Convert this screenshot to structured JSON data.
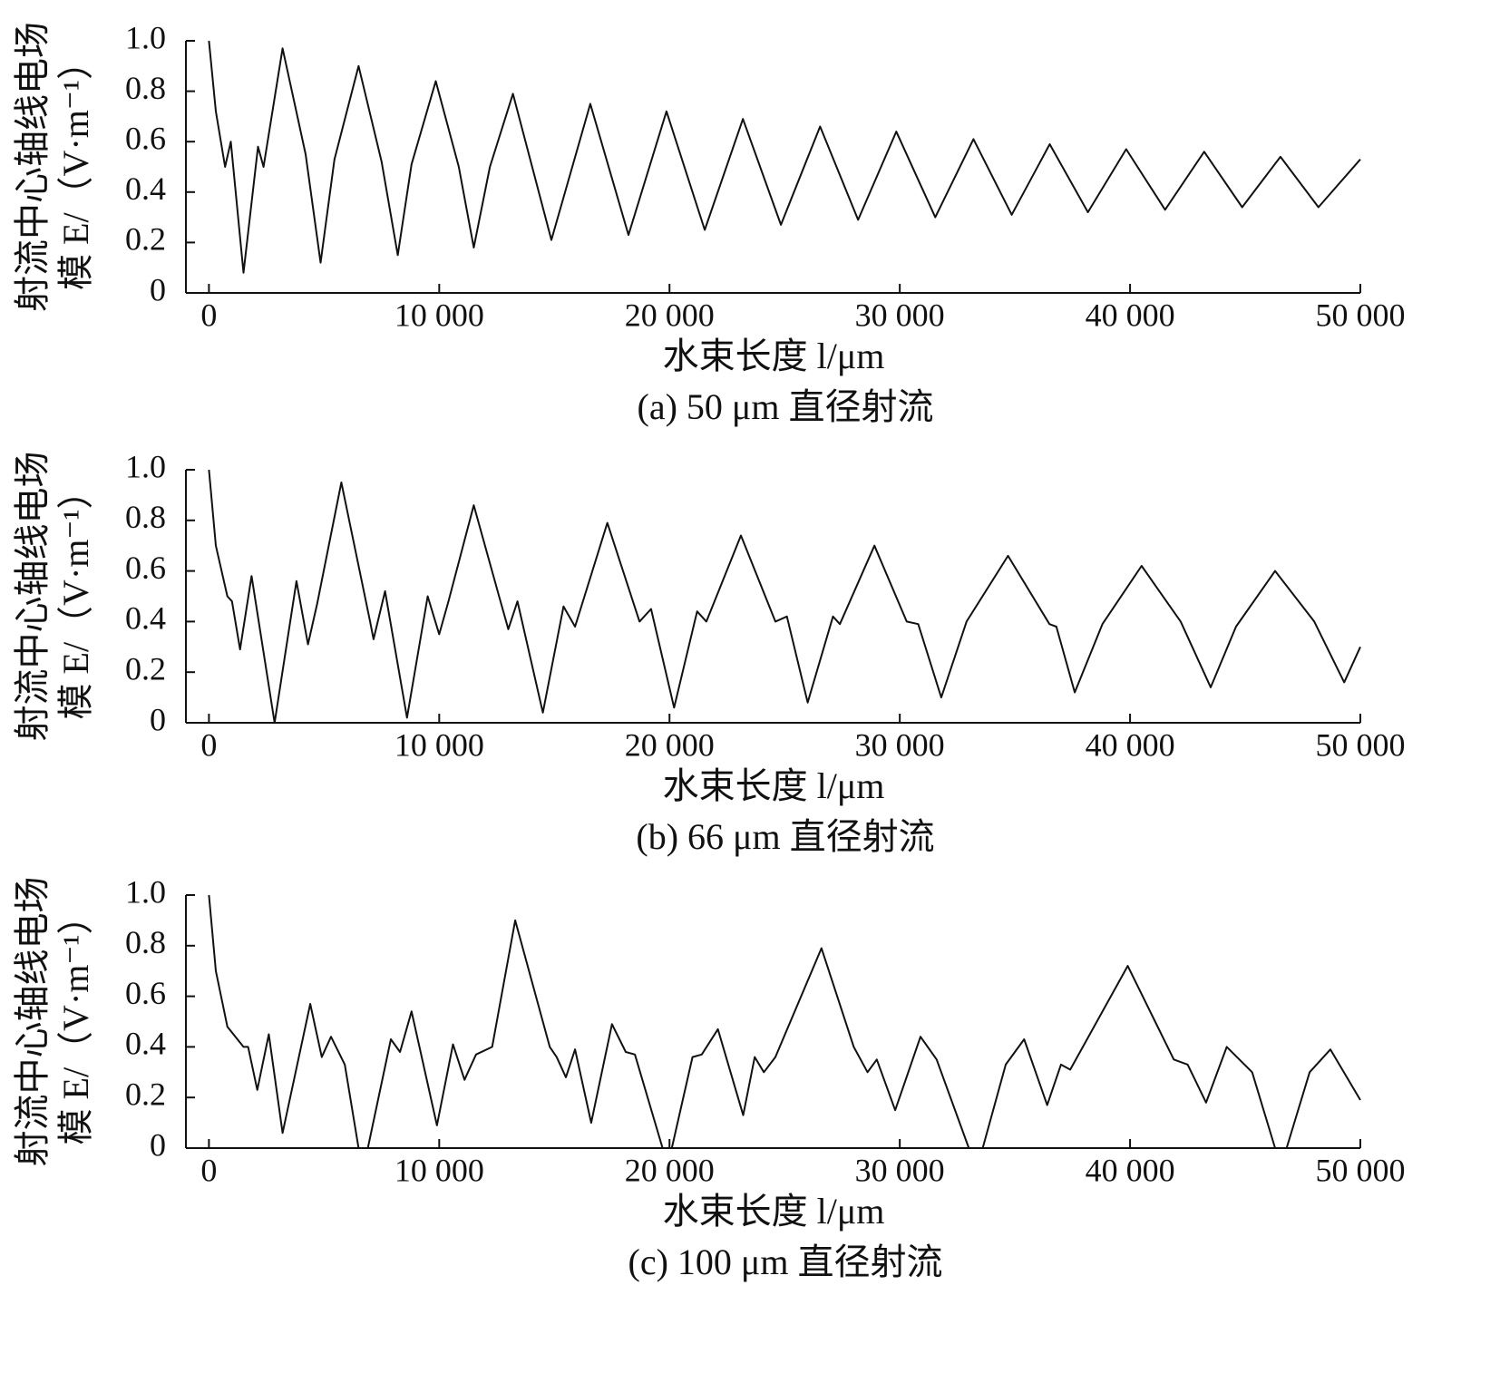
{
  "chart_data": [
    {
      "type": "line",
      "caption": "(a)  50 μm 直径射流",
      "xlabel": "水束长度 l/μm",
      "ylabel": [
        "射流中心轴线电场",
        "模 E/（V·m⁻¹）"
      ],
      "color": "#111111",
      "xlim": [
        -1000,
        50000
      ],
      "ylim": [
        0,
        1
      ],
      "xticks": [
        0,
        {
          "value": 10000,
          "label": "10 000"
        },
        {
          "value": 20000,
          "label": "20 000"
        },
        {
          "value": 30000,
          "label": "30 000"
        },
        {
          "value": 40000,
          "label": "40 000"
        },
        {
          "value": 50000,
          "label": "50 000"
        }
      ],
      "yticks": [
        0,
        0.2,
        0.4,
        0.6,
        0.8,
        {
          "value": 1,
          "label": "1.0"
        }
      ],
      "x": [
        0,
        300,
        700,
        950,
        1500,
        2130,
        2370,
        3200,
        4200,
        4850,
        5450,
        6500,
        7500,
        8200,
        8800,
        9850,
        10850,
        11500,
        12200,
        13200,
        14870,
        16560,
        18220,
        19870,
        21530,
        23190,
        24840,
        26540,
        28190,
        29850,
        31540,
        33200,
        34860,
        36510,
        38170,
        39830,
        41520,
        43220,
        44870,
        46530,
        48180,
        50000
      ],
      "values": [
        1.0,
        0.72,
        0.5,
        0.6,
        0.08,
        0.58,
        0.5,
        0.97,
        0.55,
        0.12,
        0.53,
        0.9,
        0.52,
        0.15,
        0.51,
        0.84,
        0.5,
        0.18,
        0.5,
        0.79,
        0.21,
        0.75,
        0.23,
        0.72,
        0.25,
        0.69,
        0.27,
        0.66,
        0.29,
        0.64,
        0.3,
        0.61,
        0.31,
        0.59,
        0.32,
        0.57,
        0.33,
        0.56,
        0.34,
        0.54,
        0.34,
        0.53
      ]
    },
    {
      "type": "line",
      "caption": "(b)  66 μm 直径射流",
      "xlabel": "水束长度 l/μm",
      "ylabel": [
        "射流中心轴线电场",
        "模 E/（V·m⁻¹）"
      ],
      "color": "#111111",
      "xlim": [
        -1000,
        50000
      ],
      "ylim": [
        0,
        1
      ],
      "xticks": [
        0,
        {
          "value": 10000,
          "label": "10 000"
        },
        {
          "value": 20000,
          "label": "20 000"
        },
        {
          "value": 30000,
          "label": "30 000"
        },
        {
          "value": 40000,
          "label": "40 000"
        },
        {
          "value": 50000,
          "label": "50 000"
        }
      ],
      "yticks": [
        0,
        0.2,
        0.4,
        0.6,
        0.8,
        {
          "value": 1,
          "label": "1.0"
        }
      ],
      "x": [
        0,
        300,
        800,
        1000,
        1350,
        1850,
        2850,
        3800,
        4300,
        4700,
        5750,
        7000,
        7150,
        7650,
        8600,
        9500,
        10000,
        10400,
        11500,
        12600,
        13000,
        13400,
        14500,
        15400,
        15900,
        17300,
        18700,
        19200,
        20200,
        21200,
        21600,
        23100,
        24600,
        25100,
        26000,
        27100,
        27400,
        28900,
        30300,
        30800,
        31800,
        32900,
        34700,
        36500,
        36800,
        37600,
        38800,
        40500,
        42200,
        43500,
        44600,
        46300,
        48000,
        49300,
        50000
      ],
      "values": [
        1.0,
        0.7,
        0.5,
        0.48,
        0.29,
        0.58,
        0.0,
        0.56,
        0.31,
        0.47,
        0.95,
        0.4,
        0.33,
        0.52,
        0.02,
        0.5,
        0.35,
        0.48,
        0.86,
        0.5,
        0.37,
        0.48,
        0.04,
        0.46,
        0.38,
        0.79,
        0.4,
        0.45,
        0.06,
        0.44,
        0.4,
        0.74,
        0.4,
        0.42,
        0.08,
        0.42,
        0.39,
        0.7,
        0.4,
        0.39,
        0.1,
        0.4,
        0.66,
        0.39,
        0.38,
        0.12,
        0.39,
        0.62,
        0.4,
        0.14,
        0.38,
        0.6,
        0.4,
        0.16,
        0.3
      ]
    },
    {
      "type": "line",
      "caption": "(c)  100 μm 直径射流",
      "xlabel": "水束长度 l/μm",
      "ylabel": [
        "射流中心轴线电场",
        "模 E/（V·m⁻¹）"
      ],
      "color": "#111111",
      "xlim": [
        -1000,
        50000
      ],
      "ylim": [
        0,
        1
      ],
      "xticks": [
        0,
        {
          "value": 10000,
          "label": "10 000"
        },
        {
          "value": 20000,
          "label": "20 000"
        },
        {
          "value": 30000,
          "label": "30 000"
        },
        {
          "value": 40000,
          "label": "40 000"
        },
        {
          "value": 50000,
          "label": "50 000"
        }
      ],
      "yticks": [
        0,
        0.2,
        0.4,
        0.6,
        0.8,
        {
          "value": 1,
          "label": "1.0"
        }
      ],
      "x": [
        0,
        300,
        800,
        1500,
        1700,
        2100,
        2600,
        3200,
        4400,
        4900,
        5300,
        5900,
        6500,
        6900,
        7900,
        8300,
        8800,
        9900,
        10600,
        11100,
        11600,
        12300,
        13300,
        14800,
        15100,
        15500,
        15900,
        16600,
        17500,
        18100,
        18500,
        19700,
        20100,
        21000,
        21400,
        22100,
        23200,
        23700,
        24100,
        24600,
        26600,
        28000,
        28600,
        29000,
        29800,
        30900,
        31600,
        33000,
        33600,
        34600,
        35400,
        36400,
        37000,
        37400,
        39900,
        41900,
        42500,
        43300,
        44200,
        45300,
        46300,
        46800,
        47800,
        48700,
        50000
      ],
      "values": [
        1.0,
        0.7,
        0.48,
        0.4,
        0.4,
        0.23,
        0.45,
        0.06,
        0.57,
        0.36,
        0.44,
        0.33,
        0.0,
        0.0,
        0.43,
        0.38,
        0.54,
        0.09,
        0.41,
        0.27,
        0.37,
        0.4,
        0.9,
        0.4,
        0.36,
        0.28,
        0.39,
        0.1,
        0.49,
        0.38,
        0.37,
        0.0,
        0.0,
        0.36,
        0.37,
        0.47,
        0.13,
        0.36,
        0.3,
        0.36,
        0.79,
        0.4,
        0.3,
        0.35,
        0.15,
        0.44,
        0.35,
        0.0,
        0.0,
        0.33,
        0.43,
        0.17,
        0.33,
        0.31,
        0.72,
        0.35,
        0.33,
        0.18,
        0.4,
        0.3,
        0.0,
        0.0,
        0.3,
        0.39,
        0.19
      ]
    }
  ]
}
